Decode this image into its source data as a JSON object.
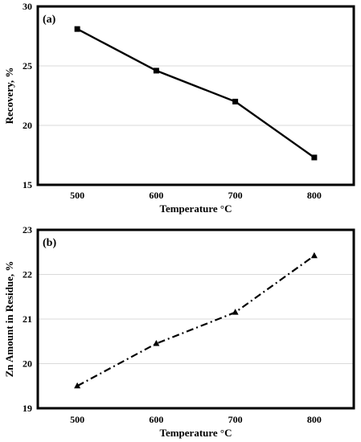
{
  "chart_data": [
    {
      "type": "line",
      "panel_label": "(a)",
      "xlabel": "Temperature °C",
      "ylabel": "Recovery, %",
      "x": [
        500,
        600,
        700,
        800
      ],
      "xlim": [
        450,
        850
      ],
      "ylim": [
        15,
        30
      ],
      "yticks": [
        15,
        20,
        25,
        30
      ],
      "grid": "horizontal",
      "line_style": "solid",
      "marker": "square",
      "series": [
        {
          "values": [
            28.1,
            24.6,
            22.0,
            17.3
          ]
        }
      ]
    },
    {
      "type": "line",
      "panel_label": "(b)",
      "xlabel": "Temperature °C",
      "ylabel": "Zn Amount in Residue, %",
      "x": [
        500,
        600,
        700,
        800
      ],
      "xlim": [
        450,
        850
      ],
      "ylim": [
        19,
        23
      ],
      "yticks": [
        19,
        20,
        21,
        22,
        23
      ],
      "grid": "horizontal",
      "line_style": "dash-dot",
      "marker": "triangle",
      "series": [
        {
          "values": [
            19.5,
            20.45,
            21.15,
            22.42
          ]
        }
      ]
    }
  ]
}
